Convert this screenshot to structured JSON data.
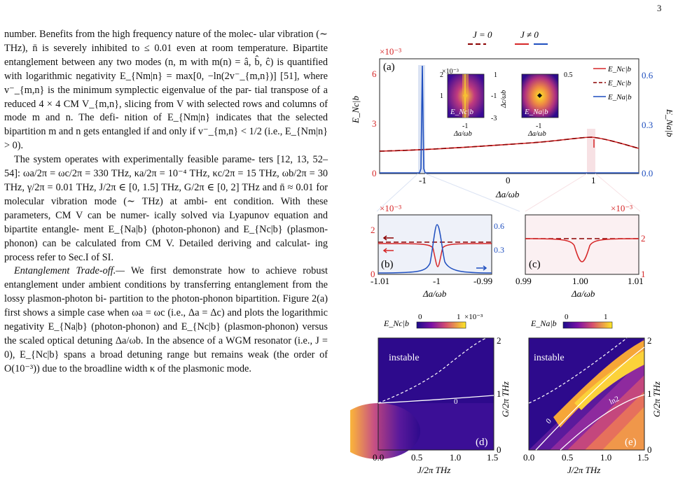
{
  "page_number": "3",
  "body": {
    "p1": [
      "number. Benefits from the high frequency nature of the molec-",
      "ular vibration (∼ THz), n̄ is severely inhibited to ≤ 0.01",
      "even at room temperature. Bipartite entanglement between",
      "any two modes (n, m with m(n) = â, b̂, ĉ) is quantified with",
      "logarithmic negativity E_{Nm|n} = max[0, −ln(2v⁻_{m,n})] [51],",
      "where v⁻_{m,n} is the minimum symplectic eigenvalue of the par-",
      "tial transpose of a reduced 4 × 4 CM V_{m,n}, slicing from V",
      "with selected rows and columns of mode m and n. The defi-",
      "nition of E_{Nm|n} indicates that the selected bipartition m and",
      "n gets entangled if and only if v⁻_{m,n} < 1/2 (i.e., E_{Nm|n} > 0)."
    ],
    "p2": [
      "The system operates with experimentally feasible parame-",
      "ters [12, 13, 52–54]: ωa/2π = ωc/2π = 330 THz, κa/2π =",
      "10⁻⁴ THz, κc/2π = 15 THz, ωb/2π = 30 THz, γ/2π =",
      "0.01 THz, J/2π ∈ [0, 1.5] THz, G/2π ∈ [0, 2] THz and",
      "n̄ ≈ 0.01 for molecular vibration mode (∼ THz) at ambi-",
      "ent condition. With these parameters, CM V can be numer-",
      "ically solved via Lyapunov equation and bipartite entangle-",
      "ment E_{Na|b} (photon-phonon) and E_{Nc|b} (plasmon-phonon)",
      "can be calculated from CM V. Detailed deriving and calculat-",
      "ing process refer to Sec.I of SI."
    ],
    "p3_lead": "Entanglement Trade-off.—",
    "p3": [
      " We first demonstrate how to",
      "achieve robust entanglement under ambient conditions by",
      "transferring entanglement from the lossy plasmon-photon bi-",
      "partition to the photon-phonon bipartition. Figure 2(a) first",
      "shows a simple case when ωa = ωc (i.e., Δa = Δc) and plots",
      "the logarithmic negativity E_{Na|b} (photon-phonon) and E_{Nc|b}",
      "(plasmon-phonon) versus the scaled optical detuning Δa/ωb.",
      "In the absence of a WGM resonator (i.e., J = 0), E_{Nc|b}",
      "spans a broad detuning range but remains weak (the order of",
      "O(10⁻³)) due to the broadline width κ of the plasmonic mode."
    ]
  },
  "figure": {
    "legend_top": {
      "j0": "J = 0",
      "jnot0": "J ≠ 0"
    },
    "panel_a": {
      "label": "(a)",
      "exponent": "×10⁻³",
      "y_left_label": "E_Nc|b",
      "y_right_label": "E_Na|b",
      "x_label": "Δa/ωb",
      "y_left_ticks": [
        "0",
        "3",
        "6"
      ],
      "y_right_ticks": [
        "0.0",
        "0.3",
        "0.6"
      ],
      "x_ticks": [
        "-1",
        "0",
        "1"
      ],
      "legend": [
        "E_Nc|b",
        "E_Nc|b",
        "E_Na|b"
      ],
      "inset1": {
        "exponent": "×10⁻³",
        "ticks_left": [
          "2",
          "1"
        ],
        "ticks_right": [
          "1",
          "-1",
          "-3"
        ],
        "x_tick": "-1",
        "label": "E_Nc|b",
        "x_label": "Δa/ωb",
        "y_label": "Δc/ωb"
      },
      "inset2": {
        "ticks_right": [
          "0.5"
        ],
        "x_tick": "-1",
        "label": "E_Na|b",
        "x_label": "Δa/ωb"
      }
    },
    "panel_b": {
      "label": "(b)",
      "exponent": "×10⁻³",
      "x_label": "Δa/ωb",
      "y_left_ticks": [
        "0",
        "2"
      ],
      "y_right_ticks": [
        "0.3",
        "0.6"
      ],
      "x_ticks": [
        "-1.01",
        "-1",
        "-0.99"
      ]
    },
    "panel_c": {
      "label": "(c)",
      "exponent": "×10⁻³",
      "x_label": "Δa/ωb",
      "y_right_ticks": [
        "1",
        "2"
      ],
      "x_ticks": [
        "0.99",
        "1.00",
        "1.01"
      ]
    },
    "panel_d": {
      "label": "(d)",
      "colorbar_label": "E_Nc|b",
      "colorbar_ticks": [
        "0",
        "1"
      ],
      "colorbar_exp": "×10⁻³",
      "region_label": "instable",
      "contour_label": "0",
      "x_label": "J/2π THz",
      "y_label": "G/2π THz",
      "x_ticks": [
        "0.0",
        "0.5",
        "1.0",
        "1.5"
      ],
      "y_ticks": [
        "0",
        "1",
        "2"
      ]
    },
    "panel_e": {
      "label": "(e)",
      "colorbar_label": "E_Na|b",
      "colorbar_ticks": [
        "0",
        "1"
      ],
      "region_label": "instable",
      "contour_labels": [
        "0",
        "ln2"
      ],
      "x_label": "J/2π THz",
      "y_label": "G/2π THz",
      "x_ticks": [
        "0.0",
        "0.5",
        "1.0",
        "1.5"
      ],
      "y_ticks": [
        "0",
        "1",
        "2"
      ]
    },
    "colors": {
      "red": "#d62728",
      "darkred": "#8b0000",
      "blue": "#1f4fbf",
      "shade": "#dbe3f3",
      "pink": "#f7e1e4"
    }
  }
}
